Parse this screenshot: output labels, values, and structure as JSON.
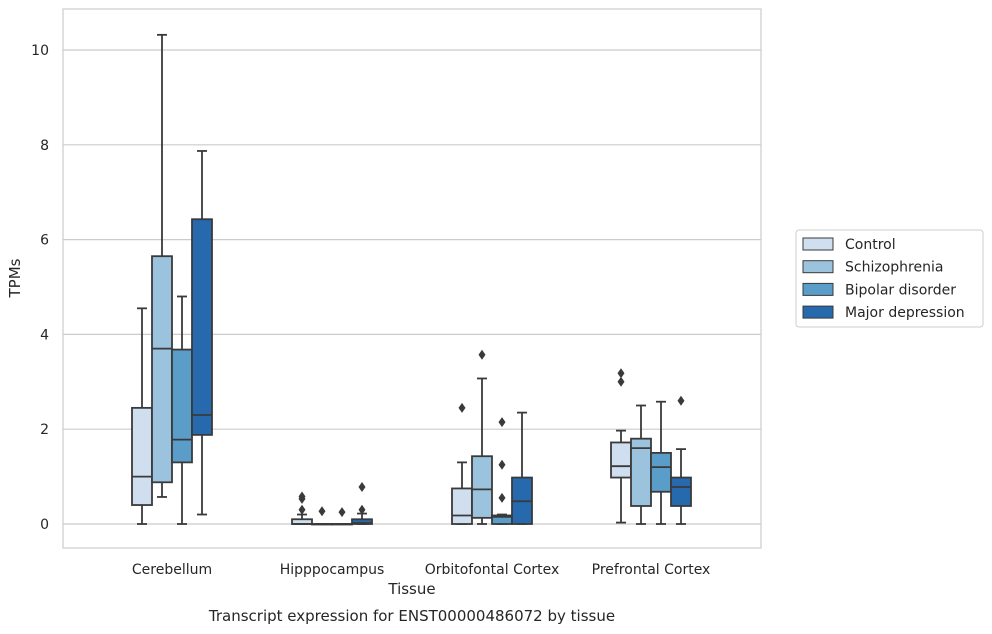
{
  "chart_data": {
    "type": "box",
    "xlabel": "Tissue",
    "ylabel": "TPMs",
    "caption": "Transcript expression for ENST00000486072 by tissue",
    "ylim": [
      -0.5,
      10.85
    ],
    "yticks": [
      0,
      2,
      4,
      6,
      8,
      10
    ],
    "grid": "horizontal",
    "legend_position": "right",
    "categories": [
      "Cerebellum",
      "Hipppocampus",
      "Orbitofontal Cortex",
      "Prefrontal Cortex"
    ],
    "series": [
      {
        "name": "Control",
        "color": "#cfdff0",
        "boxes": [
          {
            "min": 0,
            "q1": 0.4,
            "median": 1.0,
            "q3": 2.45,
            "max": 4.55,
            "outliers": []
          },
          {
            "min": 0,
            "q1": 0,
            "median": 0,
            "q3": 0.1,
            "max": 0.2,
            "outliers": [
              0.3,
              0.53,
              0.58
            ]
          },
          {
            "min": 0,
            "q1": 0,
            "median": 0.18,
            "q3": 0.75,
            "max": 1.3,
            "outliers": [
              2.45
            ]
          },
          {
            "min": 0.03,
            "q1": 0.98,
            "median": 1.22,
            "q3": 1.72,
            "max": 1.97,
            "outliers": [
              3.0,
              3.18
            ]
          }
        ]
      },
      {
        "name": "Schizophrenia",
        "color": "#9cc3dd",
        "boxes": [
          {
            "min": 0.57,
            "q1": 0.88,
            "median": 3.7,
            "q3": 5.65,
            "max": 10.32,
            "outliers": []
          },
          {
            "min": 0,
            "q1": 0,
            "median": 0,
            "q3": 0,
            "max": 0,
            "outliers": [
              0.27
            ]
          },
          {
            "min": 0,
            "q1": 0.13,
            "median": 0.73,
            "q3": 1.43,
            "max": 3.07,
            "outliers": [
              3.57
            ]
          },
          {
            "min": 0,
            "q1": 0.38,
            "median": 1.6,
            "q3": 1.8,
            "max": 2.5,
            "outliers": []
          }
        ]
      },
      {
        "name": "Bipolar disorder",
        "color": "#5a9dc9",
        "boxes": [
          {
            "min": 0,
            "q1": 1.3,
            "median": 1.78,
            "q3": 3.68,
            "max": 4.8,
            "outliers": []
          },
          {
            "min": 0,
            "q1": 0,
            "median": 0,
            "q3": 0,
            "max": 0,
            "outliers": [
              0.25
            ]
          },
          {
            "min": 0,
            "q1": 0,
            "median": 0.15,
            "q3": 0.18,
            "max": 0.2,
            "outliers": [
              0.55,
              1.25,
              2.15
            ]
          },
          {
            "min": 0,
            "q1": 0.68,
            "median": 1.2,
            "q3": 1.5,
            "max": 2.58,
            "outliers": []
          }
        ]
      },
      {
        "name": "Major depression",
        "color": "#2669ad",
        "boxes": [
          {
            "min": 0.2,
            "q1": 1.88,
            "median": 2.3,
            "q3": 6.43,
            "max": 7.87,
            "outliers": []
          },
          {
            "min": 0,
            "q1": 0,
            "median": 0.02,
            "q3": 0.1,
            "max": 0.22,
            "outliers": [
              0.3,
              0.78
            ]
          },
          {
            "min": 0,
            "q1": 0,
            "median": 0.48,
            "q3": 0.98,
            "max": 2.35,
            "outliers": []
          },
          {
            "min": 0,
            "q1": 0.38,
            "median": 0.78,
            "q3": 0.98,
            "max": 1.58,
            "outliers": [
              2.6
            ]
          }
        ]
      }
    ]
  }
}
